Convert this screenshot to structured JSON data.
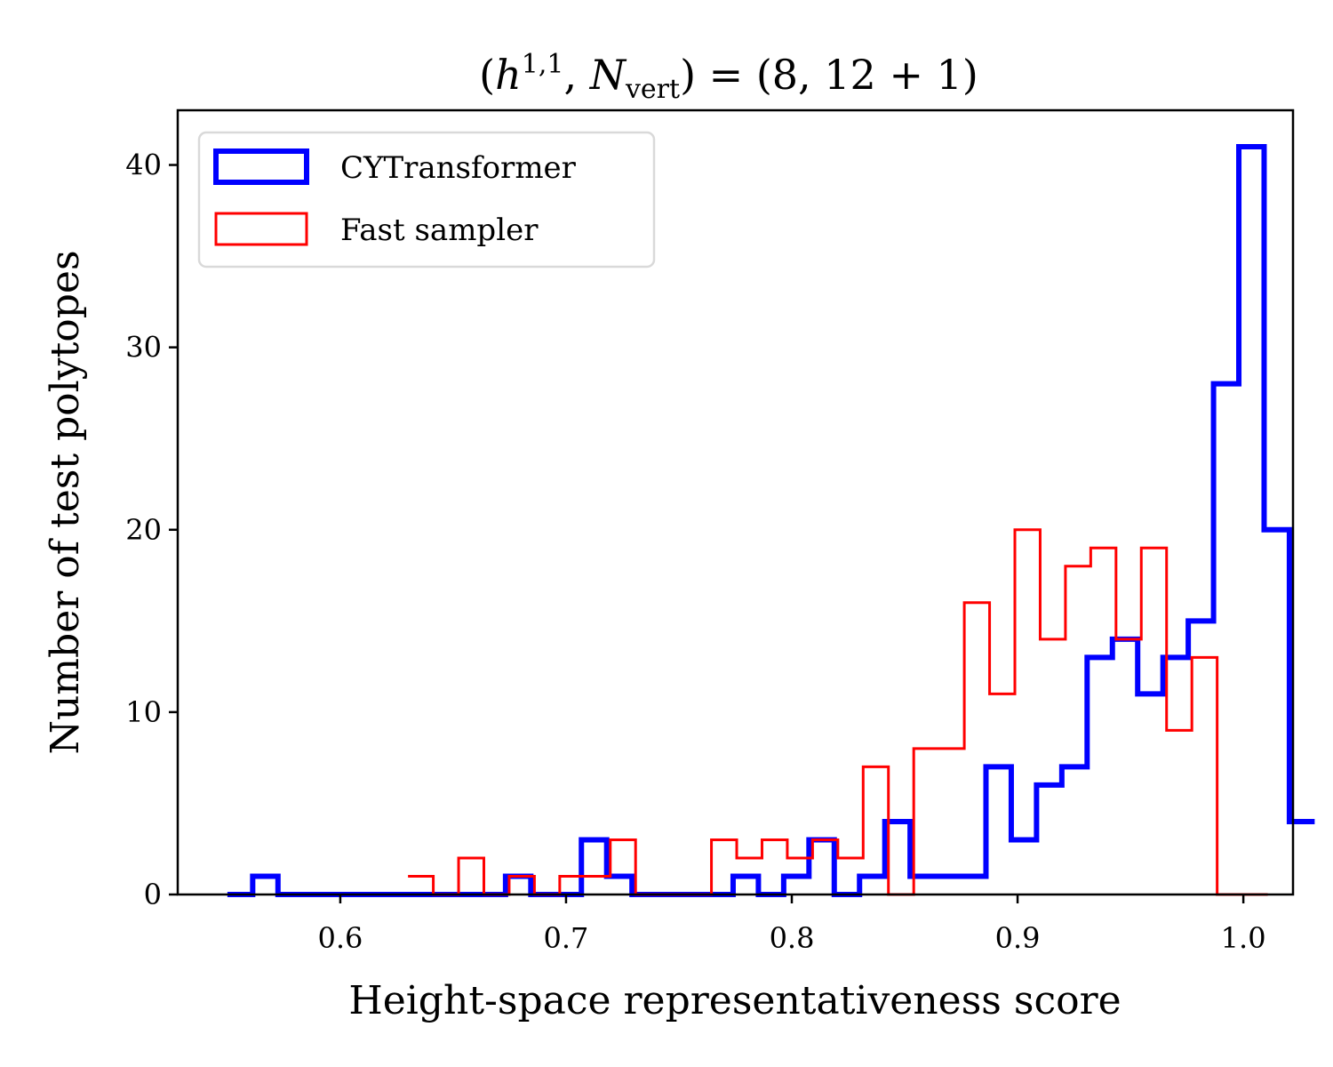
{
  "chart_data": {
    "type": "histogram",
    "title": "(h^{1,1}, N_vert) = (8, 12 + 1)",
    "title_parts": {
      "open": "(",
      "h": "h",
      "h_sup": "1,1",
      "sep": ", ",
      "N": "N",
      "N_sub": "vert",
      "rhs": ") = (8, 12 + 1)"
    },
    "xlabel": "Height-space representativeness score",
    "ylabel": "Number of test polytopes",
    "xlim": [
      0.528,
      1.022
    ],
    "ylim": [
      0,
      43
    ],
    "xticks": [
      0.6,
      0.7,
      0.8,
      0.9,
      1.0
    ],
    "xtick_labels": [
      "0.6",
      "0.7",
      "0.8",
      "0.9",
      "1.0"
    ],
    "yticks": [
      0,
      10,
      20,
      30,
      40
    ],
    "ytick_labels": [
      "0",
      "10",
      "20",
      "30",
      "40"
    ],
    "grid": false,
    "legend_position": "upper-left",
    "series": [
      {
        "name": "CYTransformer",
        "color": "#0000ff",
        "bin_start": 0.55,
        "bin_width": 0.0112,
        "values": [
          0,
          1,
          0,
          0,
          0,
          0,
          0,
          0,
          0,
          0,
          0,
          1,
          0,
          0,
          3,
          1,
          0,
          0,
          0,
          0,
          1,
          0,
          1,
          3,
          0,
          1,
          4,
          1,
          1,
          1,
          7,
          3,
          6,
          7,
          13,
          14,
          11,
          13,
          15,
          28,
          41,
          20,
          4
        ]
      },
      {
        "name": "Fast sampler",
        "color": "#ff0000",
        "bin_start": 0.63,
        "bin_width": 0.0112,
        "values": [
          1,
          0,
          2,
          0,
          1,
          0,
          1,
          1,
          3,
          0,
          0,
          0,
          3,
          2,
          3,
          2,
          3,
          2,
          7,
          0,
          8,
          8,
          16,
          11,
          20,
          14,
          18,
          19,
          14,
          19,
          9,
          13,
          0,
          0
        ]
      }
    ]
  }
}
